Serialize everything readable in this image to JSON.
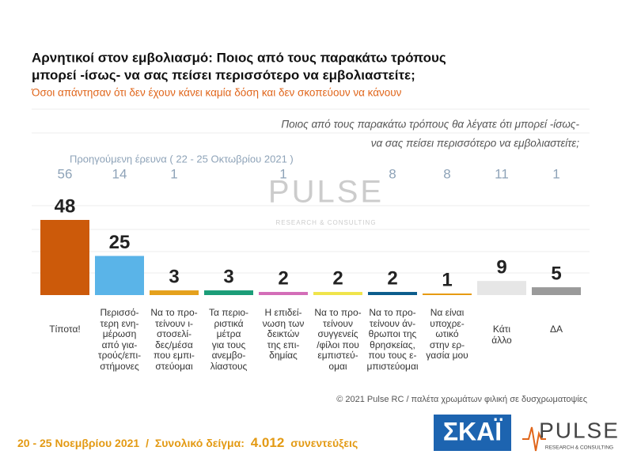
{
  "chart_data": {
    "type": "bar",
    "title": [
      "Αρνητικοί στον εμβολιασμό: Ποιος από τους παρακάτω τρόπους",
      "μπορεί -ίσως- να σας πείσει περισσότερο να εμβολιαστείτε;"
    ],
    "subtitle": "Όσοι απάντησαν ότι δεν έχουν κάνει καμία δόση και δεν σκοπεύουν να κάνουν",
    "annotation": [
      "Ποιος από τους παρακάτω τρόπους θα λέγατε ότι μπορεί -ίσως-",
      "να σας πείσει περισσότερο να εμβολιαστείτε;"
    ],
    "categories": [
      "Τίποτα!",
      "Περισσό-\nτερη ενη-\nμέρωση\nαπό για-\nτρούς/επι-\nστήμονες",
      "Να το προ-\nτείνουν ι-\nστοσελί-\nδες/μέσα\nπου εμπι-\nστεύομαι",
      "Τα περιο-\nριστικά\nμέτρα\nγια τους\nανεμβο-\nλίαστους",
      "Η επιδεί-\nνωση των\nδεικτών\nτης επι-\nδημίας",
      "Να το προ-\nτείνουν\nσυγγενείς\n/φίλοι που\nεμπιστεύ-\nομαι",
      "Να το προ-\nτείνουν άν-\nθρωποι της\nθρησκείας,\nπου τους ε-\nμπιστεύομαι",
      "Να είναι\nυποχρε-\nωτικό\nστην ερ-\nγασία μου",
      "Κάτι\nάλλο",
      "ΔΑ"
    ],
    "values": [
      48,
      25,
      3,
      3,
      2,
      2,
      2,
      1,
      9,
      5
    ],
    "colors": [
      "#cc5a0a",
      "#5ab4e8",
      "#e5a11c",
      "#1b9d78",
      "#d36db7",
      "#f0e44a",
      "#0b5c8c",
      "#e79a10",
      "#e6e6e6",
      "#9a9a9a"
    ],
    "previous": {
      "label": "Προηγούμενη έρευνα  ( 22 - 25 Οκτωβρίου 2021 )",
      "values": [
        56,
        14,
        1,
        null,
        1,
        null,
        8,
        8,
        11,
        1
      ]
    },
    "copyright": "© 2021 Pulse RC  /  παλέτα χρωμάτων φιλική σε δυσχρωματοψίες",
    "watermark": [
      "PULSE",
      "RESEARCH & CONSULTING"
    ],
    "footer": [
      "20 - 25  Νοεμβρίου 2021",
      "/",
      "Συνολικό δείγμα:",
      "4.012",
      "συνεντεύξεις"
    ],
    "logos": [
      "ΣΚΑΪ",
      "PULSE",
      "RESEARCH & CONSULTING"
    ]
  }
}
